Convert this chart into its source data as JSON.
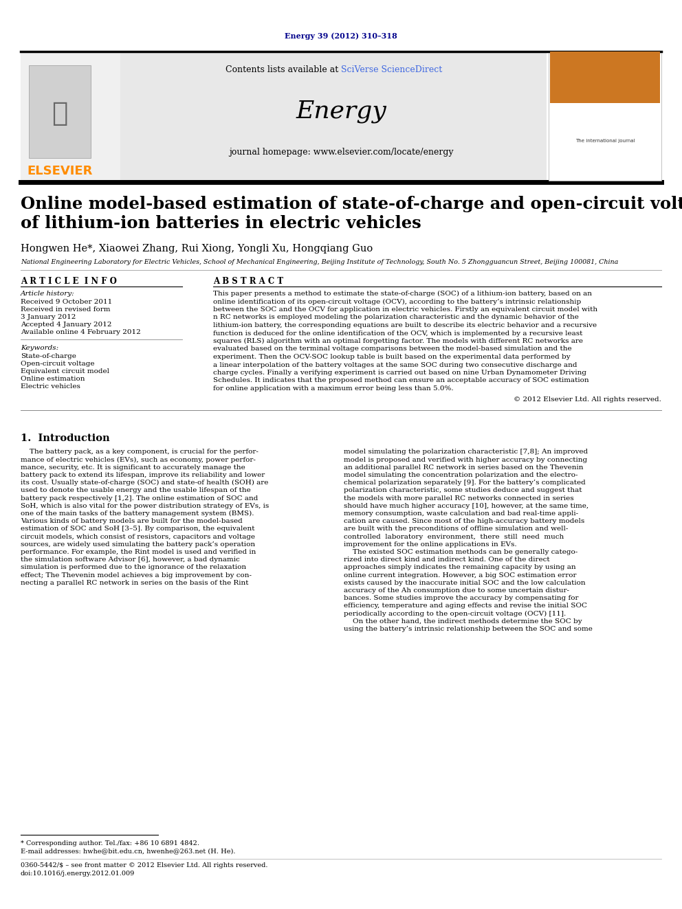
{
  "page_color": "#ffffff",
  "journal_ref": "Energy 39 (2012) 310–318",
  "journal_ref_color": "#00008B",
  "header_bg": "#e8e8e8",
  "sciverse_color": "#4169E1",
  "journal_name": "Energy",
  "elsevier_color": "#FF8C00",
  "title_line1": "Online model-based estimation of state-of-charge and open-circuit voltage",
  "title_line2": "of lithium-ion batteries in electric vehicles",
  "authors": "Hongwen He*, Xiaowei Zhang, Rui Xiong, Yongli Xu, Hongqiang Guo",
  "affiliation": "National Engineering Laboratory for Electric Vehicles, School of Mechanical Engineering, Beijing Institute of Technology, South No. 5 Zhongguancun Street, Beijing 100081, China",
  "article_info_title": "A R T I C L E  I N F O",
  "abstract_title": "A B S T R A C T",
  "article_history_label": "Article history:",
  "article_history": [
    "Received 9 October 2011",
    "Received in revised form",
    "3 January 2012",
    "Accepted 4 January 2012",
    "Available online 4 February 2012"
  ],
  "keywords_label": "Keywords:",
  "keywords": [
    "State-of-charge",
    "Open-circuit voltage",
    "Equivalent circuit model",
    "Online estimation",
    "Electric vehicles"
  ],
  "abstract_lines": [
    "This paper presents a method to estimate the state-of-charge (SOC) of a lithium-ion battery, based on an",
    "online identification of its open-circuit voltage (OCV), according to the battery’s intrinsic relationship",
    "between the SOC and the OCV for application in electric vehicles. Firstly an equivalent circuit model with",
    "n RC networks is employed modeling the polarization characteristic and the dynamic behavior of the",
    "lithium-ion battery, the corresponding equations are built to describe its electric behavior and a recursive",
    "function is deduced for the online identification of the OCV, which is implemented by a recursive least",
    "squares (RLS) algorithm with an optimal forgetting factor. The models with different RC networks are",
    "evaluated based on the terminal voltage comparisons between the model-based simulation and the",
    "experiment. Then the OCV-SOC lookup table is built based on the experimental data performed by",
    "a linear interpolation of the battery voltages at the same SOC during two consecutive discharge and",
    "charge cycles. Finally a verifying experiment is carried out based on nine Urban Dynamometer Driving",
    "Schedules. It indicates that the proposed method can ensure an acceptable accuracy of SOC estimation",
    "for online application with a maximum error being less than 5.0%."
  ],
  "copyright": "© 2012 Elsevier Ltd. All rights reserved.",
  "intro_title": "1.  Introduction",
  "intro_col1_lines": [
    "    The battery pack, as a key component, is crucial for the perfor-",
    "mance of electric vehicles (EVs), such as economy, power perfor-",
    "mance, security, etc. It is significant to accurately manage the",
    "battery pack to extend its lifespan, improve its reliability and lower",
    "its cost. Usually state-of-charge (SOC) and state-of health (SOH) are",
    "used to denote the usable energy and the usable lifespan of the",
    "battery pack respectively [1,2]. The online estimation of SOC and",
    "SoH, which is also vital for the power distribution strategy of EVs, is",
    "one of the main tasks of the battery management system (BMS).",
    "Various kinds of battery models are built for the model-based",
    "estimation of SOC and SoH [3–5]. By comparison, the equivalent",
    "circuit models, which consist of resistors, capacitors and voltage",
    "sources, are widely used simulating the battery pack’s operation",
    "performance. For example, the Rint model is used and verified in",
    "the simulation software Advisor [6], however, a bad dynamic",
    "simulation is performed due to the ignorance of the relaxation",
    "effect; The Thevenin model achieves a big improvement by con-",
    "necting a parallel RC network in series on the basis of the Rint"
  ],
  "intro_col2_lines": [
    "model simulating the polarization characteristic [7,8]; An improved",
    "model is proposed and verified with higher accuracy by connecting",
    "an additional parallel RC network in series based on the Thevenin",
    "model simulating the concentration polarization and the electro-",
    "chemical polarization separately [9]. For the battery’s complicated",
    "polarization characteristic, some studies deduce and suggest that",
    "the models with more parallel RC networks connected in series",
    "should have much higher accuracy [10], however, at the same time,",
    "memory consumption, waste calculation and bad real-time appli-",
    "cation are caused. Since most of the high-accuracy battery models",
    "are built with the preconditions of offline simulation and well-",
    "controlled  laboratory  environment,  there  still  need  much",
    "improvement for the online applications in EVs.",
    "    The existed SOC estimation methods can be generally catego-",
    "rized into direct kind and indirect kind. One of the direct",
    "approaches simply indicates the remaining capacity by using an",
    "online current integration. However, a big SOC estimation error",
    "exists caused by the inaccurate initial SOC and the low calculation",
    "accuracy of the Ah consumption due to some uncertain distur-",
    "bances. Some studies improve the accuracy by compensating for",
    "efficiency, temperature and aging effects and revise the initial SOC",
    "periodically according to the open-circuit voltage (OCV) [11].",
    "    On the other hand, the indirect methods determine the SOC by",
    "using the battery’s intrinsic relationship between the SOC and some"
  ],
  "footnote1": "* Corresponding author. Tel./fax: +86 10 6891 4842.",
  "footnote2": "E-mail addresses: hwhe@bit.edu.cn, hwenhe@263.net (H. He).",
  "footer1": "0360-5442/$ – see front matter © 2012 Elsevier Ltd. All rights reserved.",
  "footer2": "doi:10.1016/j.energy.2012.01.009"
}
